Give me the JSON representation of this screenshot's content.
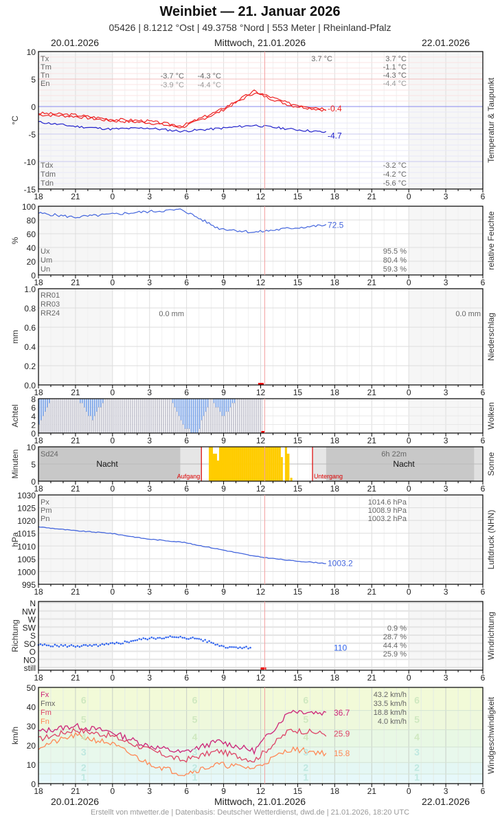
{
  "header": {
    "title": "Weinbiet  —  21. Januar 2026",
    "subtitle": "05426  |  8.1212 °Ost  |  49.3758 °Nord  |  553 Meter  |  Rheinland-Pfalz"
  },
  "dates": {
    "left": "20.01.2026",
    "center": "Mittwoch, 21.01.2026",
    "right": "22.01.2026"
  },
  "x_ticks": [
    "18",
    "21",
    "0",
    "3",
    "6",
    "9",
    "12",
    "15",
    "18",
    "21",
    "0",
    "3",
    "6"
  ],
  "footer": "Erstellt von mtwetter.de | Datenbasis: Deutscher Wetterdienst, dwd.de | 21.01.2026, 18:20 UTC",
  "colors": {
    "temp": "#ee2222",
    "dew": "#2222cc",
    "humidity": "#4466dd",
    "cloud": "#7ba4e8",
    "sun": "#ffcc00",
    "pressure": "#4466dd",
    "winddir": "#3366ee",
    "fx": "#cc2277",
    "fm": "#dd4466",
    "fn": "#ff8855",
    "now_line": "#f4a0a0"
  },
  "chart_data": [
    {
      "type": "line",
      "title": "Temperatur & Taupunkt",
      "ylabel": "°C",
      "ylim": [
        -15,
        10
      ],
      "yticks": [
        "10",
        "5",
        "0",
        "-5",
        "-10",
        "-15"
      ],
      "x": [
        "18",
        "21",
        "0",
        "3",
        "6",
        "9",
        "12",
        "15",
        "18"
      ],
      "series": [
        {
          "name": "Temperatur",
          "values": [
            -1.2,
            -1.5,
            -2.3,
            -2.6,
            -3.5,
            -0.8,
            2.8,
            0.5,
            -0.4
          ]
        },
        {
          "name": "Taupunkt",
          "values": [
            -2.8,
            -3.6,
            -4.1,
            -3.9,
            -4.5,
            -4.0,
            -3.4,
            -4.1,
            -4.7
          ]
        }
      ],
      "legend_left": [
        "Tx",
        "Tm",
        "Tn",
        "En"
      ],
      "legend_left_dew": [
        "Tdx",
        "Tdm",
        "Tdn"
      ],
      "annotations": {
        "tn_night": "-3.7 °C",
        "tn_day": "-4.3 °C",
        "en_night": "-3.9 °C",
        "en_day": "-4.4 °C",
        "tx_day": "3.7 °C",
        "tx": "3.7 °C",
        "tm": "-1.1 °C",
        "tn": "-4.3 °C",
        "en": "-4.4 °C",
        "tdx": "-3.2 °C",
        "tdm": "-4.2 °C",
        "tdn": "-5.6 °C",
        "temp_last": "-0.4",
        "dew_last": "-4.7"
      }
    },
    {
      "type": "line",
      "title": "relative Feuchte",
      "ylabel": "%",
      "ylim": [
        0,
        100
      ],
      "yticks": [
        "100",
        "80",
        "60",
        "40",
        "20",
        "0"
      ],
      "series": [
        {
          "name": "Feuchte",
          "values": [
            90,
            84,
            88,
            92,
            95,
            68,
            62,
            68,
            72.5
          ]
        }
      ],
      "legend": [
        "Ux",
        "Um",
        "Un"
      ],
      "annotations": {
        "ux": "95.5 %",
        "um": "80.4 %",
        "un": "59.3 %",
        "last": "72.5"
      }
    },
    {
      "type": "bar",
      "title": "Niederschlag",
      "ylabel": "mm",
      "ylim": [
        0,
        1.0
      ],
      "yticks": [
        "1.0",
        "0.8",
        "0.6",
        "0.4",
        "0.2",
        "0.0"
      ],
      "series": [
        {
          "name": "RR",
          "values": [
            0,
            0,
            0,
            0,
            0,
            0,
            0,
            0,
            0
          ]
        }
      ],
      "legend": [
        "RR01",
        "RR03",
        "RR24"
      ],
      "annotations": {
        "rr24_day1": "0.0 mm",
        "rr24_day2": "0.0 mm"
      }
    },
    {
      "type": "bar",
      "title": "Wolken",
      "ylabel": "Achtel",
      "ylim": [
        0,
        8
      ],
      "yticks": [
        "8",
        "6",
        "4",
        "2",
        "0"
      ],
      "series": [
        {
          "name": "Bedeckung",
          "values": [
            2,
            8,
            8,
            8,
            3,
            8,
            8,
            8,
            8,
            8,
            8,
            1,
            0,
            8,
            4,
            8,
            8,
            8
          ]
        }
      ]
    },
    {
      "type": "bar",
      "title": "Sonne",
      "ylabel": "Minuten",
      "ylim": [
        0,
        10
      ],
      "yticks": [
        "10",
        "5",
        "0"
      ],
      "series": [
        {
          "name": "Sonnenschein",
          "values": [
            0,
            0,
            0,
            0,
            0,
            10,
            10,
            10,
            10,
            0
          ]
        }
      ],
      "legend": [
        "Sd24"
      ],
      "annotations": {
        "night": "Nacht",
        "sunrise": "Aufgang",
        "sunset": "Untergang",
        "sd24": "6h 22m"
      }
    },
    {
      "type": "line",
      "title": "Luftdruck (NHN)",
      "ylabel": "hPa",
      "ylim": [
        995,
        1030
      ],
      "yticks": [
        "1030",
        "1025",
        "1020",
        "1015",
        "1010",
        "1005",
        "1000",
        "995"
      ],
      "series": [
        {
          "name": "Luftdruck",
          "values": [
            1017.5,
            1016.0,
            1015.0,
            1012.8,
            1011.5,
            1008.8,
            1006.0,
            1004.3,
            1003.2
          ]
        }
      ],
      "legend": [
        "Px",
        "Pm",
        "Pn"
      ],
      "annotations": {
        "px": "1014.6 hPa",
        "pm": "1008.9 hPa",
        "pn": "1003.2 hPa",
        "last": "1003.2"
      }
    },
    {
      "type": "scatter",
      "title": "Windrichtung",
      "ylabel": "Richtung",
      "yticks": [
        "N",
        "NW",
        "W",
        "SW",
        "S",
        "SO",
        "O",
        "NO",
        "still"
      ],
      "series": [
        {
          "name": "Richtung",
          "values": [
            125,
            120,
            120,
            135,
            160,
            170,
            160,
            115,
            110
          ]
        }
      ],
      "annotations": {
        "p1": "0.9 %",
        "p2": "28.7 %",
        "p3": "44.4 %",
        "p4": "25.9 %",
        "last": "110"
      }
    },
    {
      "type": "line",
      "title": "Windgeschwindigkeit",
      "ylabel": "km/h",
      "ylim": [
        0,
        50
      ],
      "yticks": [
        "50",
        "40",
        "30",
        "20",
        "10",
        "0"
      ],
      "series": [
        {
          "name": "Fx",
          "values": [
            27,
            30,
            27,
            20,
            16,
            22,
            17,
            38,
            36.7
          ]
        },
        {
          "name": "Fm",
          "values": [
            23,
            28,
            25,
            18,
            12,
            17,
            12,
            28,
            25.9
          ]
        },
        {
          "name": "Fn",
          "values": [
            19,
            25,
            21,
            11,
            5,
            10,
            8,
            18,
            15.8
          ]
        }
      ],
      "legend": [
        "Fx",
        "Fmx",
        "Fm",
        "Fn"
      ],
      "bft_labels": [
        "6",
        "5",
        "4",
        "3",
        "2",
        "1"
      ],
      "annotations": {
        "fx": "43.2 km/h",
        "fmx": "33.5 km/h",
        "fm": "18.8 km/h",
        "fn": "4.0 km/h",
        "fx_last": "36.7",
        "fm_last": "25.9",
        "fn_last": "15.8"
      }
    }
  ]
}
